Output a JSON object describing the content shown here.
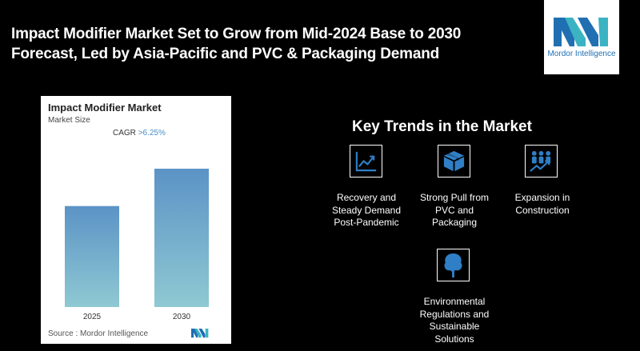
{
  "header": {
    "title_line1": "Impact Modifier Market Set to Grow from Mid-2024 Base to 2030",
    "title_line2": "Forecast, Led by Asia-Pacific and PVC & Packaging Demand"
  },
  "logo": {
    "text": "Mordor Intelligence"
  },
  "chart_card": {
    "title": "Impact Modifier Market",
    "subtitle": "Market Size",
    "cagr_label": "CAGR",
    "cagr_value": ">6.25%",
    "source": "Source : Mordor Intelligence"
  },
  "chart_data": {
    "type": "bar",
    "title": "Impact Modifier Market",
    "ylabel": "Market Size",
    "categories": [
      "2025",
      "2030"
    ],
    "values": [
      0.73,
      1.0
    ],
    "bar_gradient": [
      "#5b93c6",
      "#8fc9d2"
    ],
    "ylim": [
      0,
      1
    ],
    "grid": false,
    "axis_ticks_visible": false
  },
  "trends": {
    "title": "Key Trends in the Market",
    "items": [
      {
        "icon": "growth-chart-icon",
        "label_lines": [
          "Recovery and",
          "Steady Demand",
          "Post-Pandemic"
        ]
      },
      {
        "icon": "package-box-icon",
        "label_lines": [
          "Strong Pull from",
          "PVC and",
          "Packaging"
        ]
      },
      {
        "icon": "people-growth-icon",
        "label_lines": [
          "Expansion in",
          "Construction"
        ]
      },
      {
        "icon": "tree-icon",
        "label_lines": [
          "Environmental",
          "Regulations and",
          "Sustainable",
          "Solutions"
        ]
      }
    ]
  },
  "colors": {
    "background": "#000000",
    "icon_blue": "#2f7fc6",
    "brand_blue": "#1f6fb2",
    "brand_teal": "#3bb3c3"
  }
}
